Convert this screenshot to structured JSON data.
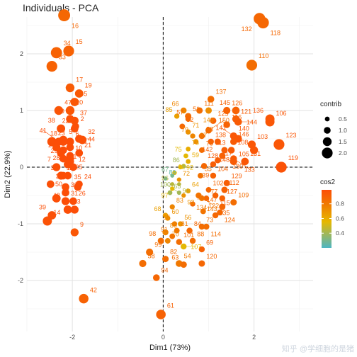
{
  "chart_data": {
    "type": "scatter",
    "title": "Individuals - PCA",
    "xlabel": "Dim1 (73%)",
    "ylabel": "Dim2 (22.9%)",
    "xlim": [
      -3.0,
      3.3
    ],
    "ylim": [
      -2.9,
      2.65
    ],
    "xticks": [
      -2,
      0,
      2
    ],
    "yticks": [
      -2,
      -1,
      0,
      1,
      2
    ],
    "grid": true,
    "reference_lines": {
      "x": 0,
      "y": 0
    },
    "legend_placement": "right",
    "legend": {
      "size_title": "contrib",
      "size_values": [
        0.5,
        1.0,
        1.5,
        2.0
      ],
      "color_title": "cos2",
      "color_ticks": [
        0.4,
        0.6,
        0.8
      ],
      "color_range": [
        0.2,
        0.99
      ],
      "colors": [
        "#4db6c3",
        "#e6b800",
        "#f07a00",
        "#fc4e07"
      ]
    },
    "points": [
      {
        "label": "1",
        "x": -2.1,
        "y": 0.05,
        "contrib": 1.3,
        "cos2": 0.99
      },
      {
        "label": "2",
        "x": -1.93,
        "y": 0.72,
        "contrib": 1.1,
        "cos2": 0.98
      },
      {
        "label": "3",
        "x": -2.48,
        "y": -0.3,
        "contrib": 1.2,
        "cos2": 0.98
      },
      {
        "label": "4",
        "x": -2.05,
        "y": 0.1,
        "contrib": 1.3,
        "cos2": 0.99
      },
      {
        "label": "5",
        "x": -2.2,
        "y": 0.48,
        "contrib": 1.4,
        "cos2": 0.99
      },
      {
        "label": "6",
        "x": -2.05,
        "y": 0.45,
        "contrib": 1.3,
        "cos2": 0.99
      },
      {
        "label": "7",
        "x": -2.35,
        "y": 0.0,
        "contrib": 1.3,
        "cos2": 0.98
      },
      {
        "label": "8",
        "x": -2.2,
        "y": 0.3,
        "contrib": 1.2,
        "cos2": 0.99
      },
      {
        "label": "9",
        "x": -1.95,
        "y": -1.15,
        "contrib": 1.3,
        "cos2": 0.95
      },
      {
        "label": "10",
        "x": -2.05,
        "y": 0.2,
        "contrib": 1.2,
        "cos2": 0.99
      },
      {
        "label": "11",
        "x": -2.25,
        "y": -0.15,
        "contrib": 1.3,
        "cos2": 0.99
      },
      {
        "label": "12",
        "x": -1.98,
        "y": 0.0,
        "contrib": 1.2,
        "cos2": 0.99
      },
      {
        "label": "13",
        "x": -2.1,
        "y": -0.75,
        "contrib": 1.4,
        "cos2": 0.99
      },
      {
        "label": "14",
        "x": -2.55,
        "y": -0.95,
        "contrib": 1.6,
        "cos2": 0.97
      },
      {
        "label": "15",
        "x": -2.08,
        "y": 2.05,
        "contrib": 2.0,
        "cos2": 0.9
      },
      {
        "label": "16",
        "x": -2.18,
        "y": 2.68,
        "contrib": 2.3,
        "cos2": 0.88
      },
      {
        "label": "17",
        "x": -2.05,
        "y": 1.4,
        "contrib": 1.5,
        "cos2": 0.93
      },
      {
        "label": "18",
        "x": -2.2,
        "y": 0.45,
        "contrib": 1.4,
        "cos2": 0.99
      },
      {
        "label": "19",
        "x": -1.85,
        "y": 1.3,
        "contrib": 1.4,
        "cos2": 0.94
      },
      {
        "label": "20",
        "x": -2.05,
        "y": 1.0,
        "contrib": 1.5,
        "cos2": 0.95
      },
      {
        "label": "21",
        "x": -1.85,
        "y": 0.25,
        "contrib": 1.2,
        "cos2": 0.99
      },
      {
        "label": "22",
        "x": -1.95,
        "y": 0.68,
        "contrib": 1.2,
        "cos2": 0.98
      },
      {
        "label": "23",
        "x": -2.45,
        "y": 0.45,
        "contrib": 1.6,
        "cos2": 0.98
      },
      {
        "label": "24",
        "x": -1.85,
        "y": -0.3,
        "contrib": 1.1,
        "cos2": 0.99
      },
      {
        "label": "25",
        "x": -2.05,
        "y": 0.15,
        "contrib": 1.3,
        "cos2": 0.99
      },
      {
        "label": "26",
        "x": -1.98,
        "y": -0.6,
        "contrib": 1.2,
        "cos2": 0.99
      },
      {
        "label": "27",
        "x": -2.25,
        "y": 0.25,
        "contrib": 1.3,
        "cos2": 0.99
      },
      {
        "label": "28",
        "x": -2.35,
        "y": 0.35,
        "contrib": 1.3,
        "cos2": 0.98
      },
      {
        "label": "29",
        "x": -2.2,
        "y": 0.15,
        "contrib": 1.2,
        "cos2": 0.99
      },
      {
        "label": "30",
        "x": -2.15,
        "y": -0.45,
        "contrib": 1.2,
        "cos2": 0.99
      },
      {
        "label": "31",
        "x": -2.15,
        "y": -0.6,
        "contrib": 1.3,
        "cos2": 0.99
      },
      {
        "label": "32",
        "x": -1.78,
        "y": 0.48,
        "contrib": 1.4,
        "cos2": 0.98
      },
      {
        "label": "33",
        "x": -2.45,
        "y": 1.78,
        "contrib": 2.0,
        "cos2": 0.9
      },
      {
        "label": "34",
        "x": -2.35,
        "y": 2.02,
        "contrib": 2.1,
        "cos2": 0.9
      },
      {
        "label": "35",
        "x": -1.88,
        "y": -0.35,
        "contrib": 1.2,
        "cos2": 0.99
      },
      {
        "label": "36",
        "x": -2.2,
        "y": -0.15,
        "contrib": 1.2,
        "cos2": 0.99
      },
      {
        "label": "37",
        "x": -1.95,
        "y": 0.82,
        "contrib": 1.3,
        "cos2": 0.97
      },
      {
        "label": "38",
        "x": -2.25,
        "y": 0.68,
        "contrib": 1.4,
        "cos2": 0.98
      },
      {
        "label": "39",
        "x": -2.45,
        "y": -0.85,
        "contrib": 1.4,
        "cos2": 0.98
      },
      {
        "label": "40",
        "x": -2.05,
        "y": 0.35,
        "contrib": 1.2,
        "cos2": 0.99
      },
      {
        "label": "41",
        "x": -2.3,
        "y": 0.45,
        "contrib": 1.3,
        "cos2": 0.99
      },
      {
        "label": "42",
        "x": -1.75,
        "y": -2.32,
        "contrib": 1.7,
        "cos2": 0.9
      },
      {
        "label": "43",
        "x": -2.35,
        "y": -0.55,
        "contrib": 1.4,
        "cos2": 0.99
      },
      {
        "label": "44",
        "x": -1.85,
        "y": 0.5,
        "contrib": 1.3,
        "cos2": 0.98
      },
      {
        "label": "45",
        "x": -1.95,
        "y": 1.15,
        "contrib": 1.4,
        "cos2": 0.95
      },
      {
        "label": "46",
        "x": -1.95,
        "y": -0.75,
        "contrib": 1.3,
        "cos2": 0.99
      },
      {
        "label": "47",
        "x": -2.3,
        "y": 1.0,
        "contrib": 1.5,
        "cos2": 0.96
      },
      {
        "label": "48",
        "x": -2.15,
        "y": -0.35,
        "contrib": 1.2,
        "cos2": 0.99
      },
      {
        "label": "49",
        "x": -2.05,
        "y": 0.85,
        "contrib": 1.3,
        "cos2": 0.97
      },
      {
        "label": "50",
        "x": -2.1,
        "y": -0.15,
        "contrib": 1.2,
        "cos2": 0.99
      },
      {
        "label": "51",
        "x": 0.55,
        "y": 0.9,
        "contrib": 0.9,
        "cos2": 0.86
      },
      {
        "label": "52",
        "x": 0.42,
        "y": 0.72,
        "contrib": 0.7,
        "cos2": 0.88
      },
      {
        "label": "53",
        "x": 0.85,
        "y": 0.55,
        "contrib": 0.8,
        "cos2": 0.85
      },
      {
        "label": "54",
        "x": 0.35,
        "y": -1.7,
        "contrib": 1.0,
        "cos2": 0.8
      },
      {
        "label": "55",
        "x": 0.82,
        "y": -0.15,
        "contrib": 0.7,
        "cos2": 0.82
      },
      {
        "label": "56",
        "x": 0.38,
        "y": -1.0,
        "contrib": 0.6,
        "cos2": 0.7
      },
      {
        "label": "57",
        "x": 0.55,
        "y": 0.85,
        "contrib": 0.7,
        "cos2": 0.88
      },
      {
        "label": "58",
        "x": -0.45,
        "y": -1.7,
        "contrib": 1.1,
        "cos2": 0.85
      },
      {
        "label": "59",
        "x": 0.55,
        "y": 0.1,
        "contrib": 0.5,
        "cos2": 0.6
      },
      {
        "label": "60",
        "x": 0.1,
        "y": -0.9,
        "contrib": 0.6,
        "cos2": 0.7
      },
      {
        "label": "61",
        "x": -0.05,
        "y": -2.6,
        "contrib": 1.7,
        "cos2": 0.9
      },
      {
        "label": "62",
        "x": 0.25,
        "y": -0.1,
        "contrib": 0.4,
        "cos2": 0.55
      },
      {
        "label": "63",
        "x": 0.45,
        "y": -1.72,
        "contrib": 0.9,
        "cos2": 0.85
      },
      {
        "label": "64",
        "x": 0.55,
        "y": -0.42,
        "contrib": 0.5,
        "cos2": 0.65
      },
      {
        "label": "65",
        "x": 0.15,
        "y": -0.45,
        "contrib": 0.5,
        "cos2": 0.4
      },
      {
        "label": "66",
        "x": 0.45,
        "y": 1.0,
        "contrib": 0.8,
        "cos2": 0.75
      },
      {
        "label": "67",
        "x": 0.2,
        "y": -0.15,
        "contrib": 0.3,
        "cos2": 0.3
      },
      {
        "label": "68",
        "x": 0.05,
        "y": -0.85,
        "contrib": 0.6,
        "cos2": 0.65
      },
      {
        "label": "69",
        "x": 0.85,
        "y": -1.45,
        "contrib": 0.8,
        "cos2": 0.9
      },
      {
        "label": "70",
        "x": 0.1,
        "y": -1.3,
        "contrib": 0.7,
        "cos2": 0.75
      },
      {
        "label": "71",
        "x": 0.55,
        "y": 0.62,
        "contrib": 0.6,
        "cos2": 0.7
      },
      {
        "label": "72",
        "x": 0.35,
        "y": -0.22,
        "contrib": 0.4,
        "cos2": 0.7
      },
      {
        "label": "73",
        "x": 0.85,
        "y": -1.05,
        "contrib": 0.8,
        "cos2": 0.85
      },
      {
        "label": "74",
        "x": 0.65,
        "y": -0.65,
        "contrib": 0.6,
        "cos2": 0.88
      },
      {
        "label": "75",
        "x": 0.5,
        "y": 0.2,
        "contrib": 0.5,
        "cos2": 0.55
      },
      {
        "label": "76",
        "x": 0.55,
        "y": 0.32,
        "contrib": 0.5,
        "cos2": 0.6
      },
      {
        "label": "77",
        "x": 0.95,
        "y": -0.55,
        "contrib": 0.7,
        "cos2": 0.88
      },
      {
        "label": "78",
        "x": 0.85,
        "y": 0.3,
        "contrib": 0.7,
        "cos2": 0.85
      },
      {
        "label": "79",
        "x": 0.65,
        "y": 0.55,
        "contrib": 0.6,
        "cos2": 0.75
      },
      {
        "label": "80",
        "x": 0.05,
        "y": -1.15,
        "contrib": 0.8,
        "cos2": 0.75
      },
      {
        "label": "81",
        "x": 0.3,
        "y": -1.12,
        "contrib": 0.7,
        "cos2": 0.8
      },
      {
        "label": "82",
        "x": 0.05,
        "y": -1.62,
        "contrib": 0.9,
        "cos2": 0.85
      },
      {
        "label": "83",
        "x": 0.2,
        "y": -0.7,
        "contrib": 0.6,
        "cos2": 0.75
      },
      {
        "label": "84",
        "x": 0.58,
        "y": -1.12,
        "contrib": 0.8,
        "cos2": 0.88
      },
      {
        "label": "85",
        "x": 0.3,
        "y": 0.9,
        "contrib": 0.6,
        "cos2": 0.65
      },
      {
        "label": "86",
        "x": 0.45,
        "y": 0.02,
        "contrib": 0.4,
        "cos2": 0.4
      },
      {
        "label": "87",
        "x": 0.72,
        "y": 0.45,
        "contrib": 0.6,
        "cos2": 0.75
      },
      {
        "label": "88",
        "x": 0.65,
        "y": -1.3,
        "contrib": 0.8,
        "cos2": 0.85
      },
      {
        "label": "89",
        "x": 0.05,
        "y": -0.2,
        "contrib": 0.3,
        "cos2": 0.25
      },
      {
        "label": "90",
        "x": 0.35,
        "y": -0.3,
        "contrib": 0.3,
        "cos2": 0.45
      },
      {
        "label": "91",
        "x": 0.2,
        "y": -1.22,
        "contrib": 0.7,
        "cos2": 0.82
      },
      {
        "label": "92",
        "x": 0.38,
        "y": 0.0,
        "contrib": 0.4,
        "cos2": 0.55
      },
      {
        "label": "93",
        "x": 0.45,
        "y": -0.5,
        "contrib": 0.4,
        "cos2": 0.7
      },
      {
        "label": "94",
        "x": -0.15,
        "y": -1.95,
        "contrib": 1.0,
        "cos2": 0.88
      },
      {
        "label": "95",
        "x": 0.25,
        "y": -1.0,
        "contrib": 0.6,
        "cos2": 0.78
      },
      {
        "label": "96",
        "x": 0.2,
        "y": -0.3,
        "contrib": 0.3,
        "cos2": 0.45
      },
      {
        "label": "97",
        "x": 0.2,
        "y": -0.38,
        "contrib": 0.4,
        "cos2": 0.55
      },
      {
        "label": "98",
        "x": -0.05,
        "y": -1.3,
        "contrib": 0.9,
        "cos2": 0.85
      },
      {
        "label": "99",
        "x": -0.3,
        "y": -1.5,
        "contrib": 1.1,
        "cos2": 0.85
      },
      {
        "label": "100",
        "x": 0.35,
        "y": -0.45,
        "contrib": 0.4,
        "cos2": 0.4
      },
      {
        "label": "101",
        "x": 0.35,
        "y": -1.32,
        "contrib": 0.8,
        "cos2": 0.85
      },
      {
        "label": "102",
        "x": 1.0,
        "y": -0.4,
        "contrib": 0.7,
        "cos2": 0.88
      },
      {
        "label": "103",
        "x": 1.95,
        "y": 0.4,
        "contrib": 1.3,
        "cos2": 0.95
      },
      {
        "label": "104",
        "x": 1.1,
        "y": -0.15,
        "contrib": 0.8,
        "cos2": 0.9
      },
      {
        "label": "105",
        "x": 1.55,
        "y": 0.1,
        "contrib": 1.1,
        "cos2": 0.93
      },
      {
        "label": "106",
        "x": 2.35,
        "y": 0.8,
        "contrib": 1.6,
        "cos2": 0.95
      },
      {
        "label": "107",
        "x": 0.45,
        "y": -1.4,
        "contrib": 0.8,
        "cos2": 0.55
      },
      {
        "label": "108",
        "x": 2.0,
        "y": 0.3,
        "contrib": 1.3,
        "cos2": 0.95
      },
      {
        "label": "109",
        "x": 1.55,
        "y": -0.62,
        "contrib": 0.9,
        "cos2": 0.85
      },
      {
        "label": "110",
        "x": 1.95,
        "y": 1.8,
        "contrib": 2.0,
        "cos2": 0.85
      },
      {
        "label": "111",
        "x": 0.8,
        "y": 1.0,
        "contrib": 0.9,
        "cos2": 0.85
      },
      {
        "label": "112",
        "x": 1.35,
        "y": -0.4,
        "contrib": 0.9,
        "cos2": 0.9
      },
      {
        "label": "113",
        "x": 1.5,
        "y": 0.3,
        "contrib": 1.0,
        "cos2": 0.93
      },
      {
        "label": "114",
        "x": 0.95,
        "y": -1.05,
        "contrib": 0.8,
        "cos2": 0.85
      },
      {
        "label": "115",
        "x": 1.15,
        "y": -0.5,
        "contrib": 0.8,
        "cos2": 0.9
      },
      {
        "label": "116",
        "x": 1.4,
        "y": 0.75,
        "contrib": 1.0,
        "cos2": 0.9
      },
      {
        "label": "117",
        "x": 1.2,
        "y": 0.12,
        "contrib": 0.8,
        "cos2": 0.92
      },
      {
        "label": "118",
        "x": 2.2,
        "y": 2.55,
        "contrib": 2.2,
        "cos2": 0.88
      },
      {
        "label": "119",
        "x": 2.6,
        "y": 0.0,
        "contrib": 2.0,
        "cos2": 0.97
      },
      {
        "label": "120",
        "x": 0.85,
        "y": -1.7,
        "contrib": 0.9,
        "cos2": 0.88
      },
      {
        "label": "121",
        "x": 1.6,
        "y": 0.85,
        "contrib": 1.1,
        "cos2": 0.92
      },
      {
        "label": "122",
        "x": 0.78,
        "y": -0.5,
        "contrib": 0.8,
        "cos2": 0.82
      },
      {
        "label": "123",
        "x": 2.55,
        "y": 0.4,
        "contrib": 2.0,
        "cos2": 0.95
      },
      {
        "label": "124",
        "x": 1.25,
        "y": -0.8,
        "contrib": 0.8,
        "cos2": 0.88
      },
      {
        "label": "125",
        "x": 1.1,
        "y": 0.82,
        "contrib": 0.9,
        "cos2": 0.9
      },
      {
        "label": "126",
        "x": 1.4,
        "y": 1.0,
        "contrib": 1.1,
        "cos2": 0.9
      },
      {
        "label": "127",
        "x": 1.3,
        "y": -0.55,
        "contrib": 0.8,
        "cos2": 0.9
      },
      {
        "label": "128",
        "x": 1.1,
        "y": 0.05,
        "contrib": 0.8,
        "cos2": 0.92
      },
      {
        "label": "129",
        "x": 1.4,
        "y": -0.28,
        "contrib": 0.9,
        "cos2": 0.92
      },
      {
        "label": "130",
        "x": 1.3,
        "y": 0.2,
        "contrib": 0.9,
        "cos2": 0.9
      },
      {
        "label": "131",
        "x": 1.8,
        "y": 0.1,
        "contrib": 1.2,
        "cos2": 0.95
      },
      {
        "label": "132",
        "x": 2.12,
        "y": 2.62,
        "contrib": 2.2,
        "cos2": 0.88
      },
      {
        "label": "133",
        "x": 1.55,
        "y": 0.15,
        "contrib": 1.0,
        "cos2": 0.93
      },
      {
        "label": "134",
        "x": 0.85,
        "y": -0.55,
        "contrib": 0.7,
        "cos2": 0.8
      },
      {
        "label": "135",
        "x": 1.15,
        "y": -0.85,
        "contrib": 0.8,
        "cos2": 0.88
      },
      {
        "label": "136",
        "x": 2.35,
        "y": 0.85,
        "contrib": 1.6,
        "cos2": 0.95
      },
      {
        "label": "137",
        "x": 1.05,
        "y": 1.2,
        "contrib": 1.0,
        "cos2": 0.85
      },
      {
        "label": "138",
        "x": 1.05,
        "y": 0.45,
        "contrib": 0.8,
        "cos2": 0.92
      },
      {
        "label": "139",
        "x": 0.9,
        "y": 0.02,
        "contrib": 0.8,
        "cos2": 0.88
      },
      {
        "label": "140",
        "x": 1.55,
        "y": 0.55,
        "contrib": 1.1,
        "cos2": 0.95
      },
      {
        "label": "141",
        "x": 1.65,
        "y": 0.5,
        "contrib": 1.2,
        "cos2": 0.95
      },
      {
        "label": "142",
        "x": 1.2,
        "y": 0.45,
        "contrib": 0.9,
        "cos2": 0.92
      },
      {
        "label": "143",
        "x": 0.88,
        "y": -0.78,
        "contrib": 0.7,
        "cos2": 0.82
      },
      {
        "label": "144",
        "x": 1.65,
        "y": 0.8,
        "contrib": 1.2,
        "cos2": 0.93
      },
      {
        "label": "145",
        "x": 1.6,
        "y": 1.0,
        "contrib": 1.2,
        "cos2": 0.9
      },
      {
        "label": "146",
        "x": 1.55,
        "y": 0.45,
        "contrib": 1.0,
        "cos2": 0.93
      },
      {
        "label": "147",
        "x": 1.3,
        "y": -0.7,
        "contrib": 0.9,
        "cos2": 0.88
      },
      {
        "label": "148",
        "x": 1.35,
        "y": 0.3,
        "contrib": 0.9,
        "cos2": 0.92
      },
      {
        "label": "149",
        "x": 1.0,
        "y": 1.0,
        "contrib": 0.9,
        "cos2": 0.72
      },
      {
        "label": "150",
        "x": 1.0,
        "y": 0.65,
        "contrib": 0.9,
        "cos2": 0.86
      }
    ]
  },
  "watermark": "知乎 @学细胞的是猪"
}
